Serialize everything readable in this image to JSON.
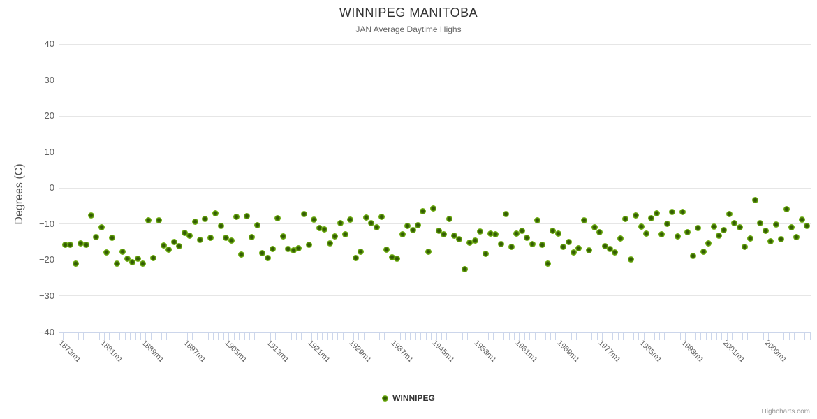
{
  "title": "WINNIPEG MANITOBA",
  "subtitle": "JAN Average Daytime Highs",
  "legend": {
    "label": "WINNIPEG"
  },
  "credits": "Highcharts.com",
  "colors": {
    "marker_outer": "#8cc63f",
    "marker_mid": "#6fb011",
    "marker_inner": "#335c03",
    "gridline": "#e6e6e6",
    "axis_line": "#ccd6eb",
    "tick": "#ccd6eb",
    "title_text": "#333333",
    "subtitle_text": "#666666",
    "axis_label_text": "#606060"
  },
  "chart_data": {
    "type": "scatter",
    "title": "WINNIPEG MANITOBA",
    "subtitle": "JAN Average Daytime Highs",
    "xlabel": "",
    "ylabel": "Degrees (C)",
    "ylim": [
      -40,
      40
    ],
    "y_ticks": [
      40,
      30,
      20,
      10,
      0,
      -10,
      -20,
      -30,
      -40
    ],
    "grid": true,
    "legend_position": "bottom-center",
    "x_start_year": 1873,
    "x_category_suffix": "m1",
    "x_label_interval": 8,
    "x_tick_labels": [
      "1873m1",
      "1881m1",
      "1889m1",
      "1897m1",
      "1905m1",
      "1913m1",
      "1921m1",
      "1929m1",
      "1937m1",
      "1945m1",
      "1953m1",
      "1961m1",
      "1969m1",
      "1977m1",
      "1985m1",
      "1993m1",
      "2001m1",
      "2009m1"
    ],
    "series": [
      {
        "name": "WINNIPEG",
        "values": [
          -15.7,
          -15.7,
          -21.0,
          -15.3,
          -15.8,
          -7.7,
          -13.7,
          -10.9,
          -17.9,
          -13.8,
          -20.9,
          -17.6,
          -19.7,
          -20.7,
          -19.7,
          -21.0,
          -9.0,
          -19.4,
          -8.9,
          -16.0,
          -17.1,
          -15.0,
          -16.2,
          -12.5,
          -13.3,
          -9.3,
          -14.4,
          -8.5,
          -13.9,
          -7.1,
          -10.5,
          -13.8,
          -14.6,
          -8.0,
          -18.4,
          -7.9,
          -13.6,
          -10.3,
          -18.1,
          -19.5,
          -17.0,
          -8.3,
          -13.5,
          -17.0,
          -17.4,
          -16.8,
          -7.2,
          -15.8,
          -8.7,
          -11.1,
          -11.5,
          -15.3,
          -13.4,
          -9.8,
          -12.9,
          -8.8,
          -19.4,
          -17.7,
          -8.2,
          -9.8,
          -10.9,
          -8.0,
          -17.1,
          -19.2,
          -19.7,
          -12.8,
          -10.5,
          -11.6,
          -10.3,
          -6.4,
          -17.7,
          -5.6,
          -11.9,
          -12.8,
          -8.5,
          -13.2,
          -14.2,
          -22.5,
          -15.2,
          -14.6,
          -12.1,
          -18.2,
          -12.6,
          -12.9,
          -15.5,
          -7.2,
          -16.3,
          -12.6,
          -11.9,
          -13.8,
          -15.6,
          -9.0,
          -15.8,
          -21.0,
          -11.8,
          -12.6,
          -16.3,
          -14.9,
          -17.9,
          -16.8,
          -8.9,
          -17.4,
          -10.9,
          -12.2,
          -16.1,
          -17.0,
          -17.9,
          -14.1,
          -8.5,
          -19.8,
          -7.7,
          -10.7,
          -12.6,
          -8.4,
          -7.1,
          -12.9,
          -10.0,
          -6.6,
          -13.4,
          -6.7,
          -12.2,
          -18.8,
          -11.1,
          -17.7,
          -15.3,
          -10.8,
          -13.2,
          -11.6,
          -7.2,
          -9.8,
          -10.9,
          -16.3,
          -14.1,
          -3.3,
          -9.8,
          -11.9,
          -14.7,
          -10.2,
          -14.2,
          -5.9,
          -10.9,
          -13.7,
          -8.7,
          -10.5
        ]
      }
    ]
  }
}
